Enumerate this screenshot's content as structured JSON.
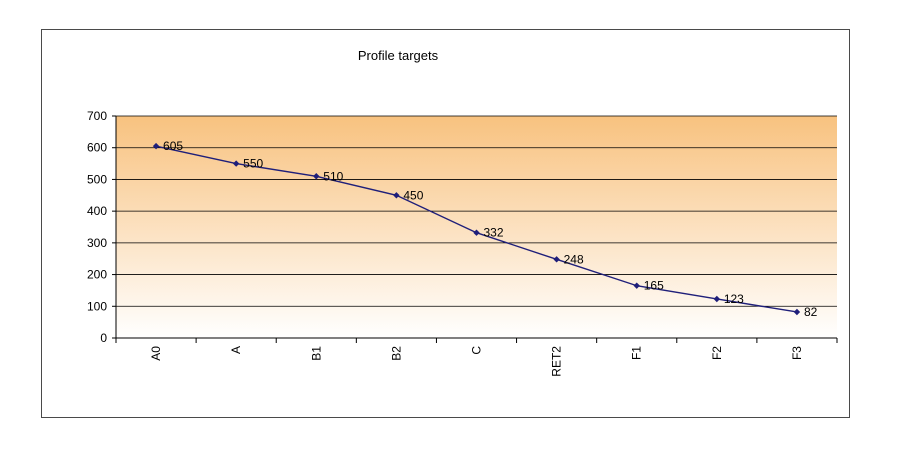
{
  "chart_data": {
    "type": "line",
    "title": "Profile targets",
    "xlabel": "",
    "ylabel": "",
    "categories": [
      "A0",
      "A",
      "B1",
      "B2",
      "C",
      "RET2",
      "F1",
      "F2",
      "F3"
    ],
    "series": [
      {
        "values": [
          605,
          550,
          510,
          450,
          332,
          248,
          165,
          123,
          82
        ],
        "data_labels": [
          "605",
          "550",
          "510",
          "450",
          "332",
          "248",
          "165",
          "123",
          "82"
        ],
        "color": "#1f1f7a",
        "marker": "diamond"
      }
    ],
    "ylim": [
      0,
      700
    ],
    "yticks": [
      0,
      100,
      200,
      300,
      400,
      500,
      600,
      700
    ],
    "ytick_labels": [
      "0",
      "100",
      "200",
      "300",
      "400",
      "500",
      "600",
      "700"
    ],
    "grid": true,
    "legend": "none",
    "plot_background": {
      "gradient_top": "#f8c27f",
      "gradient_bottom": "#ffffff"
    }
  }
}
